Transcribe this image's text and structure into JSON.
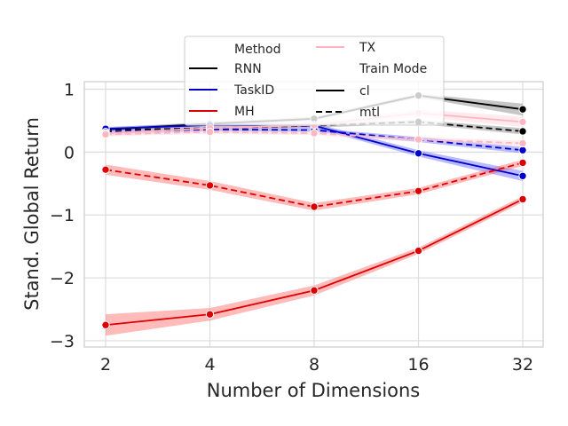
{
  "chart_data": {
    "type": "line",
    "xlabel": "Number of Dimensions",
    "ylabel": "Stand. Global Return",
    "x": [
      2,
      4,
      8,
      16,
      32
    ],
    "x_ticks": [
      "2",
      "4",
      "8",
      "16",
      "32"
    ],
    "x_scale": "log2",
    "y_ticks": [
      {
        "value": 1,
        "label": "1"
      },
      {
        "value": 0,
        "label": "0"
      },
      {
        "value": -1,
        "label": "−1"
      },
      {
        "value": -2,
        "label": "−2"
      },
      {
        "value": -3,
        "label": "−3"
      }
    ],
    "ylim": [
      -3.1,
      1.12
    ],
    "grid": true,
    "legend_placement": "top-center",
    "legend": {
      "method_title": "Method",
      "methods": [
        {
          "label": "RNN",
          "color": "#000000"
        },
        {
          "label": "TaskID",
          "color": "#0000cc"
        },
        {
          "label": "MH",
          "color": "#dd0000"
        },
        {
          "label": "TX",
          "color": "#ffb6c1"
        }
      ],
      "mode_title": "Train Mode",
      "modes": [
        {
          "label": "cl",
          "dash": "solid"
        },
        {
          "label": "mtl",
          "dash": "dashed"
        }
      ]
    },
    "series": [
      {
        "method": "RNN",
        "mode": "cl",
        "color": "#000000",
        "fill": "#808080",
        "values": [
          0.36,
          0.45,
          0.53,
          0.9,
          0.68
        ],
        "lower": [
          0.33,
          0.42,
          0.5,
          0.87,
          0.58
        ],
        "upper": [
          0.39,
          0.48,
          0.56,
          0.93,
          0.77
        ]
      },
      {
        "method": "RNN",
        "mode": "mtl",
        "color": "#000000",
        "fill": "#808080",
        "values": [
          0.35,
          0.38,
          0.42,
          0.48,
          0.33
        ],
        "lower": [
          0.32,
          0.35,
          0.39,
          0.45,
          0.28
        ],
        "upper": [
          0.38,
          0.41,
          0.45,
          0.51,
          0.38
        ]
      },
      {
        "method": "TaskID",
        "mode": "cl",
        "color": "#0000cc",
        "fill": "#6666ff",
        "values": [
          0.37,
          0.43,
          0.42,
          -0.02,
          -0.38
        ],
        "lower": [
          0.34,
          0.4,
          0.38,
          -0.07,
          -0.46
        ],
        "upper": [
          0.4,
          0.46,
          0.46,
          0.03,
          -0.3
        ]
      },
      {
        "method": "TaskID",
        "mode": "mtl",
        "color": "#0000cc",
        "fill": "#6666ff",
        "values": [
          0.32,
          0.36,
          0.35,
          0.2,
          0.03
        ],
        "lower": [
          0.29,
          0.33,
          0.32,
          0.16,
          -0.02
        ],
        "upper": [
          0.35,
          0.39,
          0.38,
          0.24,
          0.08
        ]
      },
      {
        "method": "MH",
        "mode": "cl",
        "color": "#dd0000",
        "fill": "#ff6666",
        "values": [
          -2.75,
          -2.58,
          -2.2,
          -1.57,
          -0.75
        ],
        "lower": [
          -2.92,
          -2.68,
          -2.28,
          -1.62,
          -0.8
        ],
        "upper": [
          -2.58,
          -2.48,
          -2.12,
          -1.52,
          -0.7
        ]
      },
      {
        "method": "MH",
        "mode": "mtl",
        "color": "#dd0000",
        "fill": "#ff6666",
        "values": [
          -0.28,
          -0.53,
          -0.87,
          -0.62,
          -0.17
        ],
        "lower": [
          -0.36,
          -0.6,
          -0.93,
          -0.67,
          -0.22
        ],
        "upper": [
          -0.2,
          -0.46,
          -0.81,
          -0.57,
          -0.12
        ]
      },
      {
        "method": "TX",
        "mode": "cl",
        "color": "#ffb6c1",
        "fill": "#ffd0d8",
        "values": [
          0.3,
          0.38,
          0.43,
          0.62,
          0.48
        ],
        "lower": [
          0.26,
          0.34,
          0.39,
          0.56,
          0.4
        ],
        "upper": [
          0.34,
          0.42,
          0.47,
          0.68,
          0.56
        ]
      },
      {
        "method": "TX",
        "mode": "mtl",
        "color": "#ffb6c1",
        "fill": "#ffd0d8",
        "values": [
          0.28,
          0.32,
          0.3,
          0.2,
          0.14
        ],
        "lower": [
          0.25,
          0.29,
          0.27,
          0.16,
          0.1
        ],
        "upper": [
          0.31,
          0.35,
          0.33,
          0.24,
          0.18
        ]
      }
    ]
  }
}
